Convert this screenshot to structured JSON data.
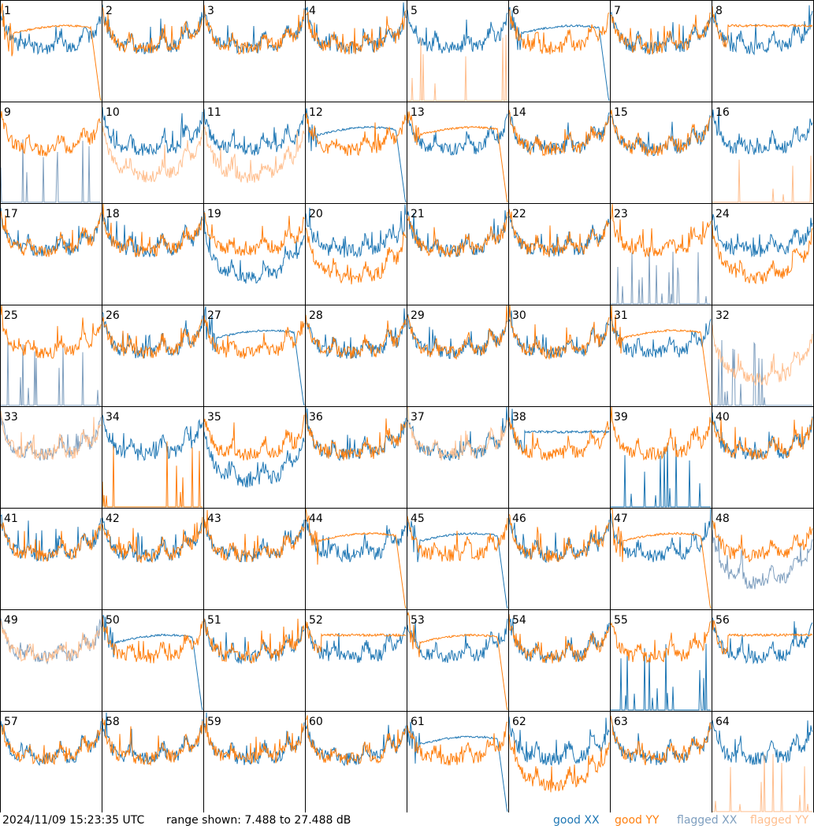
{
  "timestamp": "2024/11/09 15:23:35 UTC",
  "range_text": "range shown: 7.488 to 27.488 dB",
  "legend": {
    "good_xx": "good XX",
    "good_yy": "good YY",
    "flagged_xx": "flagged XX",
    "flagged_yy": "flagged YY"
  },
  "colors": {
    "good_xx": "#1f77b4",
    "good_yy": "#ff7f0e",
    "flagged_xx": "#7f9fbf",
    "flagged_yy": "#ffbf8f",
    "border": "#000000",
    "background": "#ffffff"
  },
  "chart_data": {
    "type": "line",
    "layout": "8x8 small multiples",
    "ylim_db": [
      7.488,
      27.488
    ],
    "panels": [
      {
        "id": 1,
        "xx": "good",
        "yy": "good",
        "xx_shape": "normal",
        "yy_shape": "rolloff"
      },
      {
        "id": 2,
        "xx": "good",
        "yy": "good",
        "xx_shape": "normal",
        "yy_shape": "normal"
      },
      {
        "id": 3,
        "xx": "good",
        "yy": "good",
        "xx_shape": "normal",
        "yy_shape": "normal"
      },
      {
        "id": 4,
        "xx": "good",
        "yy": "good",
        "xx_shape": "normal",
        "yy_shape": "normal"
      },
      {
        "id": 5,
        "xx": "good",
        "yy": "flagged",
        "xx_shape": "normal",
        "yy_shape": "dead"
      },
      {
        "id": 6,
        "xx": "good",
        "yy": "good",
        "xx_shape": "rolloff",
        "yy_shape": "normal"
      },
      {
        "id": 7,
        "xx": "good",
        "yy": "good",
        "xx_shape": "normal",
        "yy_shape": "normal"
      },
      {
        "id": 8,
        "xx": "good",
        "yy": "good",
        "xx_shape": "normal",
        "yy_shape": "flat"
      },
      {
        "id": 9,
        "xx": "flagged",
        "yy": "good",
        "xx_shape": "dead",
        "yy_shape": "normal"
      },
      {
        "id": 10,
        "xx": "good",
        "yy": "flagged",
        "xx_shape": "normal",
        "yy_shape": "low"
      },
      {
        "id": 11,
        "xx": "good",
        "yy": "flagged",
        "xx_shape": "normal",
        "yy_shape": "low"
      },
      {
        "id": 12,
        "xx": "good",
        "yy": "good",
        "xx_shape": "rolloff",
        "yy_shape": "normal"
      },
      {
        "id": 13,
        "xx": "good",
        "yy": "good",
        "xx_shape": "normal",
        "yy_shape": "rolloff"
      },
      {
        "id": 14,
        "xx": "good",
        "yy": "good",
        "xx_shape": "normal",
        "yy_shape": "normal"
      },
      {
        "id": 15,
        "xx": "good",
        "yy": "good",
        "xx_shape": "normal",
        "yy_shape": "normal"
      },
      {
        "id": 16,
        "xx": "good",
        "yy": "flagged",
        "xx_shape": "normal",
        "yy_shape": "dead"
      },
      {
        "id": 17,
        "xx": "good",
        "yy": "good",
        "xx_shape": "normal",
        "yy_shape": "normal"
      },
      {
        "id": 18,
        "xx": "good",
        "yy": "good",
        "xx_shape": "normal",
        "yy_shape": "normal"
      },
      {
        "id": 19,
        "xx": "good",
        "yy": "good",
        "xx_shape": "low",
        "yy_shape": "normal"
      },
      {
        "id": 20,
        "xx": "good",
        "yy": "good",
        "xx_shape": "normal",
        "yy_shape": "low"
      },
      {
        "id": 21,
        "xx": "good",
        "yy": "good",
        "xx_shape": "normal",
        "yy_shape": "normal"
      },
      {
        "id": 22,
        "xx": "good",
        "yy": "good",
        "xx_shape": "normal",
        "yy_shape": "normal"
      },
      {
        "id": 23,
        "xx": "flagged",
        "yy": "good",
        "xx_shape": "dead",
        "yy_shape": "normal"
      },
      {
        "id": 24,
        "xx": "good",
        "yy": "good",
        "xx_shape": "normal",
        "yy_shape": "low"
      },
      {
        "id": 25,
        "xx": "flagged",
        "yy": "good",
        "xx_shape": "dead",
        "yy_shape": "normal"
      },
      {
        "id": 26,
        "xx": "good",
        "yy": "good",
        "xx_shape": "normal",
        "yy_shape": "normal"
      },
      {
        "id": 27,
        "xx": "good",
        "yy": "good",
        "xx_shape": "rolloff",
        "yy_shape": "normal"
      },
      {
        "id": 28,
        "xx": "good",
        "yy": "good",
        "xx_shape": "normal",
        "yy_shape": "normal"
      },
      {
        "id": 29,
        "xx": "good",
        "yy": "good",
        "xx_shape": "normal",
        "yy_shape": "normal"
      },
      {
        "id": 30,
        "xx": "good",
        "yy": "good",
        "xx_shape": "normal",
        "yy_shape": "normal"
      },
      {
        "id": 31,
        "xx": "good",
        "yy": "good",
        "xx_shape": "normal",
        "yy_shape": "rolloff"
      },
      {
        "id": 32,
        "xx": "flagged",
        "yy": "flagged",
        "xx_shape": "dead",
        "yy_shape": "low"
      },
      {
        "id": 33,
        "xx": "flagged",
        "yy": "flagged",
        "xx_shape": "normal",
        "yy_shape": "normal"
      },
      {
        "id": 34,
        "xx": "good",
        "yy": "good",
        "xx_shape": "normal",
        "yy_shape": "dead"
      },
      {
        "id": 35,
        "xx": "good",
        "yy": "good",
        "xx_shape": "low",
        "yy_shape": "normal"
      },
      {
        "id": 36,
        "xx": "good",
        "yy": "good",
        "xx_shape": "normal",
        "yy_shape": "normal"
      },
      {
        "id": 37,
        "xx": "good",
        "yy": "flagged",
        "xx_shape": "normal",
        "yy_shape": "normal"
      },
      {
        "id": 38,
        "xx": "good",
        "yy": "good",
        "xx_shape": "flat",
        "yy_shape": "normal"
      },
      {
        "id": 39,
        "xx": "good",
        "yy": "good",
        "xx_shape": "dead",
        "yy_shape": "normal"
      },
      {
        "id": 40,
        "xx": "good",
        "yy": "good",
        "xx_shape": "normal",
        "yy_shape": "normal"
      },
      {
        "id": 41,
        "xx": "good",
        "yy": "good",
        "xx_shape": "normal",
        "yy_shape": "normal"
      },
      {
        "id": 42,
        "xx": "good",
        "yy": "good",
        "xx_shape": "normal",
        "yy_shape": "normal"
      },
      {
        "id": 43,
        "xx": "good",
        "yy": "good",
        "xx_shape": "normal",
        "yy_shape": "normal"
      },
      {
        "id": 44,
        "xx": "good",
        "yy": "good",
        "xx_shape": "normal",
        "yy_shape": "rolloff"
      },
      {
        "id": 45,
        "xx": "good",
        "yy": "good",
        "xx_shape": "rolloff",
        "yy_shape": "normal"
      },
      {
        "id": 46,
        "xx": "good",
        "yy": "good",
        "xx_shape": "normal",
        "yy_shape": "normal"
      },
      {
        "id": 47,
        "xx": "good",
        "yy": "good",
        "xx_shape": "normal",
        "yy_shape": "rolloff"
      },
      {
        "id": 48,
        "xx": "flagged",
        "yy": "good",
        "xx_shape": "low",
        "yy_shape": "normal"
      },
      {
        "id": 49,
        "xx": "flagged",
        "yy": "flagged",
        "xx_shape": "normal",
        "yy_shape": "normal"
      },
      {
        "id": 50,
        "xx": "good",
        "yy": "good",
        "xx_shape": "rolloff",
        "yy_shape": "normal"
      },
      {
        "id": 51,
        "xx": "good",
        "yy": "good",
        "xx_shape": "normal",
        "yy_shape": "normal"
      },
      {
        "id": 52,
        "xx": "good",
        "yy": "good",
        "xx_shape": "normal",
        "yy_shape": "flat"
      },
      {
        "id": 53,
        "xx": "good",
        "yy": "good",
        "xx_shape": "normal",
        "yy_shape": "rolloff"
      },
      {
        "id": 54,
        "xx": "good",
        "yy": "good",
        "xx_shape": "normal",
        "yy_shape": "normal"
      },
      {
        "id": 55,
        "xx": "good",
        "yy": "good",
        "xx_shape": "dead",
        "yy_shape": "normal"
      },
      {
        "id": 56,
        "xx": "good",
        "yy": "good",
        "xx_shape": "normal",
        "yy_shape": "flat"
      },
      {
        "id": 57,
        "xx": "good",
        "yy": "good",
        "xx_shape": "normal",
        "yy_shape": "normal"
      },
      {
        "id": 58,
        "xx": "good",
        "yy": "good",
        "xx_shape": "normal",
        "yy_shape": "normal"
      },
      {
        "id": 59,
        "xx": "good",
        "yy": "good",
        "xx_shape": "normal",
        "yy_shape": "normal"
      },
      {
        "id": 60,
        "xx": "good",
        "yy": "good",
        "xx_shape": "normal",
        "yy_shape": "normal"
      },
      {
        "id": 61,
        "xx": "good",
        "yy": "good",
        "xx_shape": "rolloff",
        "yy_shape": "normal"
      },
      {
        "id": 62,
        "xx": "good",
        "yy": "good",
        "xx_shape": "normal",
        "yy_shape": "low"
      },
      {
        "id": 63,
        "xx": "good",
        "yy": "good",
        "xx_shape": "normal",
        "yy_shape": "normal"
      },
      {
        "id": 64,
        "xx": "good",
        "yy": "flagged",
        "xx_shape": "normal",
        "yy_shape": "dead"
      }
    ]
  }
}
